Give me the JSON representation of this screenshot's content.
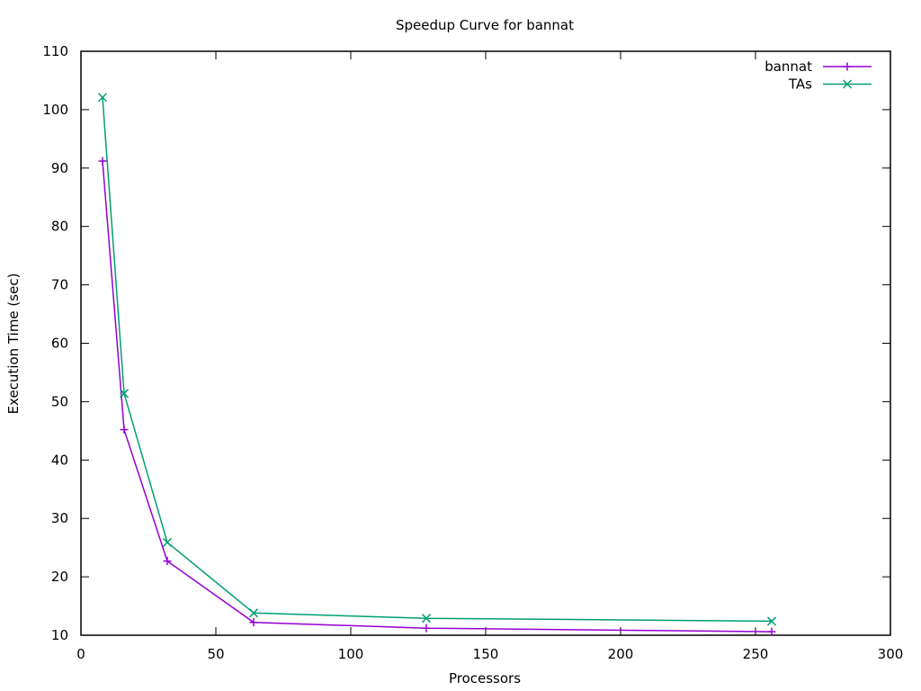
{
  "chart_data": {
    "type": "line",
    "title": "Speedup Curve for bannat",
    "xlabel": "Processors",
    "ylabel": "Execution Time (sec)",
    "xlim": [
      0,
      300
    ],
    "ylim": [
      10,
      110
    ],
    "xticks": [
      0,
      50,
      100,
      150,
      200,
      250,
      300
    ],
    "yticks": [
      10,
      20,
      30,
      40,
      50,
      60,
      70,
      80,
      90,
      100,
      110
    ],
    "grid": false,
    "legend": "top-right",
    "series": [
      {
        "name": "bannat",
        "color": "#9400d3",
        "marker": "plus",
        "x": [
          8,
          16,
          32,
          64,
          128,
          256
        ],
        "y": [
          91.2,
          45.2,
          22.7,
          12.2,
          11.2,
          10.6
        ]
      },
      {
        "name": "TAs",
        "color": "#009e73",
        "marker": "cross",
        "x": [
          8,
          16,
          32,
          64,
          128,
          256
        ],
        "y": [
          102.1,
          51.4,
          25.9,
          13.8,
          12.9,
          12.4
        ]
      }
    ]
  }
}
